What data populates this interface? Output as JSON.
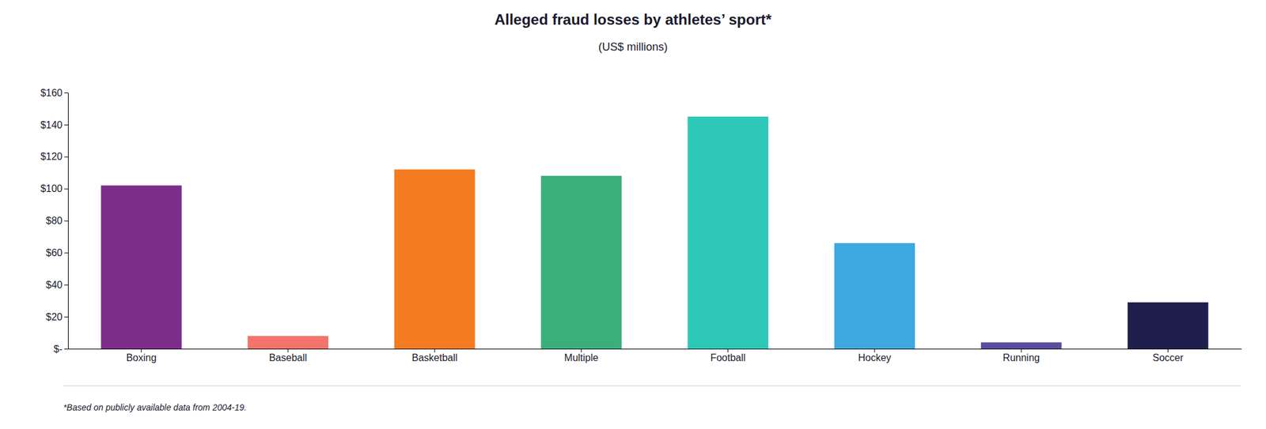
{
  "chart_data": {
    "type": "bar",
    "title": "Alleged fraud losses by athletes’ sport*",
    "subtitle": "(US$ millions)",
    "footnote": "*Based on publicly available data from 2004-19.",
    "categories": [
      "Boxing",
      "Baseball",
      "Basketball",
      "Multiple",
      "Football",
      "Hockey",
      "Running",
      "Soccer"
    ],
    "values": [
      102,
      8,
      112,
      108,
      145,
      66,
      4,
      29
    ],
    "colors": [
      "#7B2D8B",
      "#F4736B",
      "#F47B20",
      "#3BAF7A",
      "#2DC8B8",
      "#3EA8E0",
      "#5B4D9E",
      "#1F1F4E"
    ],
    "ylim": [
      0,
      160
    ],
    "yticks": [
      {
        "value": 0,
        "label": "$-"
      },
      {
        "value": 20,
        "label": "$20"
      },
      {
        "value": 40,
        "label": "$40"
      },
      {
        "value": 60,
        "label": "$60"
      },
      {
        "value": 80,
        "label": "$80"
      },
      {
        "value": 100,
        "label": "$100"
      },
      {
        "value": 120,
        "label": "$120"
      },
      {
        "value": 140,
        "label": "$140"
      },
      {
        "value": 160,
        "label": "$160"
      }
    ],
    "grid": false
  }
}
